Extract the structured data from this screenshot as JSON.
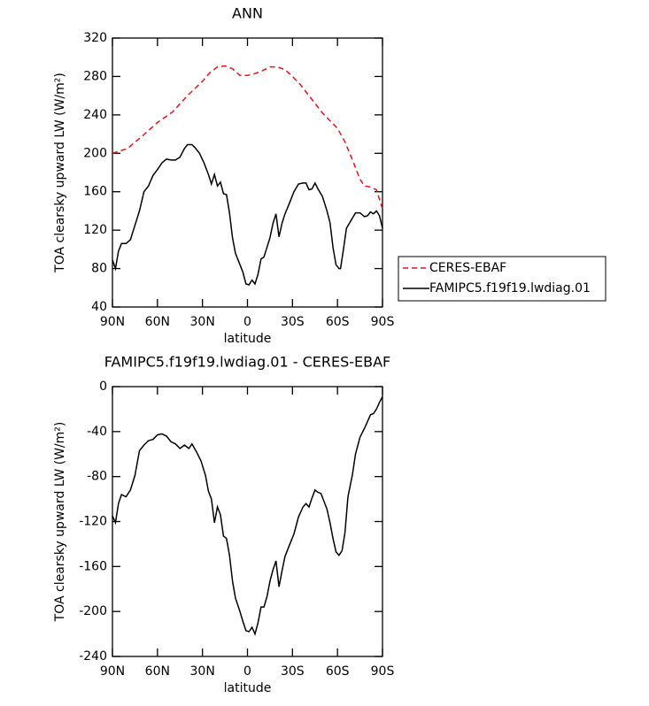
{
  "chart_data": [
    {
      "type": "line",
      "title": "ANN",
      "xlabel": "latitude",
      "ylabel": "TOA clearsky upward LW (W/m²)",
      "xlim": [
        90,
        -90
      ],
      "xticks": [
        {
          "value": 90,
          "label": "90N"
        },
        {
          "value": 60,
          "label": "60N"
        },
        {
          "value": 30,
          "label": "30N"
        },
        0,
        {
          "value": -30,
          "label": "30S"
        },
        {
          "value": -60,
          "label": "60S"
        },
        {
          "value": -90,
          "label": "90S"
        }
      ],
      "ylim": [
        40,
        320
      ],
      "yticks": [
        40,
        80,
        120,
        160,
        200,
        240,
        280,
        320
      ],
      "legend": "right",
      "series": [
        {
          "name": "CERES-EBAF",
          "color": "#e8121a",
          "dash": "dashed",
          "x": [
            90,
            80,
            70,
            60,
            50,
            40,
            30,
            25,
            20,
            15,
            10,
            5,
            0,
            -5,
            -10,
            -15,
            -20,
            -25,
            -30,
            -35,
            -40,
            -45,
            -50,
            -55,
            -60,
            -65,
            -70,
            -75,
            -78,
            -82,
            -86,
            -90
          ],
          "values": [
            200,
            205,
            218,
            232,
            243,
            260,
            275,
            284,
            290,
            291,
            288,
            281,
            281,
            283,
            286,
            290,
            290,
            287,
            280,
            272,
            262,
            252,
            242,
            234,
            226,
            212,
            193,
            173,
            166,
            165,
            162,
            142
          ]
        },
        {
          "name": "FAMIPC5.f19f19.lwdiag.01",
          "color": "#000000",
          "dash": "solid",
          "x": [
            90,
            88,
            86,
            84,
            81,
            78,
            75,
            72,
            69,
            66,
            63,
            60,
            57,
            54,
            51,
            48,
            45,
            42,
            40,
            37,
            35,
            32,
            29,
            26,
            24,
            22,
            20,
            18,
            16,
            14,
            12,
            10,
            8,
            5,
            3,
            1,
            -1,
            -3,
            -5,
            -7,
            -9,
            -11,
            -13,
            -15,
            -17,
            -19,
            -21,
            -23,
            -25,
            -28,
            -31,
            -34,
            -37,
            -39,
            -41,
            -43,
            -45,
            -47,
            -50,
            -53,
            -55,
            -57,
            -59,
            -61,
            -62,
            -64,
            -66,
            -69,
            -72,
            -75,
            -78,
            -80,
            -82,
            -84,
            -86,
            -88,
            -90
          ],
          "values": [
            89,
            80,
            98,
            106,
            106,
            110,
            125,
            140,
            160,
            166,
            177,
            183,
            190,
            194,
            193,
            193,
            196,
            205,
            209,
            209,
            206,
            200,
            190,
            178,
            168,
            178,
            166,
            170,
            158,
            157,
            138,
            112,
            96,
            84,
            76,
            64,
            63,
            68,
            64,
            74,
            90,
            92,
            102,
            112,
            127,
            137,
            113,
            127,
            137,
            148,
            160,
            168,
            169,
            169,
            162,
            163,
            169,
            163,
            155,
            140,
            128,
            102,
            84,
            80,
            80,
            100,
            122,
            130,
            138,
            138,
            134,
            135,
            139,
            137,
            140,
            135,
            122
          ]
        }
      ]
    },
    {
      "type": "line",
      "title": "FAMIPC5.f19f19.lwdiag.01 - CERES-EBAF",
      "xlabel": "latitude",
      "ylabel": "TOA clearsky upward LW (W/m²)",
      "xlim": [
        90,
        -90
      ],
      "xticks": [
        {
          "value": 90,
          "label": "90N"
        },
        {
          "value": 60,
          "label": "60N"
        },
        {
          "value": 30,
          "label": "30N"
        },
        0,
        {
          "value": -30,
          "label": "30S"
        },
        {
          "value": -60,
          "label": "60S"
        },
        {
          "value": -90,
          "label": "90S"
        }
      ],
      "ylim": [
        -240,
        0
      ],
      "yticks": [
        -240,
        -200,
        -160,
        -120,
        -80,
        -40,
        0
      ],
      "series": [
        {
          "color": "#000000",
          "dash": "solid",
          "x": [
            90,
            88,
            86,
            84,
            81,
            78,
            75,
            72,
            69,
            66,
            63,
            60,
            57,
            54,
            51,
            48,
            45,
            42,
            39,
            37,
            34,
            31,
            28,
            26,
            24,
            22,
            20,
            18,
            16,
            14,
            12,
            10,
            8,
            5,
            3,
            1,
            -1,
            -3,
            -5,
            -7,
            -9,
            -11,
            -13,
            -15,
            -17,
            -19,
            -21,
            -23,
            -25,
            -28,
            -31,
            -34,
            -37,
            -39,
            -41,
            -43,
            -45,
            -47,
            -49,
            -51,
            -53,
            -55,
            -57,
            -59,
            -61,
            -63,
            -65,
            -67,
            -70,
            -72,
            -75,
            -78,
            -80,
            -82,
            -84,
            -86,
            -88,
            -90
          ],
          "values": [
            -115,
            -121,
            -104,
            -96,
            -98,
            -92,
            -79,
            -57,
            -52,
            -48,
            -47,
            -43,
            -42,
            -44,
            -49,
            -51,
            -55,
            -52,
            -55,
            -51,
            -58,
            -66,
            -79,
            -93,
            -100,
            -121,
            -107,
            -114,
            -133,
            -135,
            -150,
            -173,
            -188,
            -200,
            -209,
            -217,
            -218,
            -214,
            -220,
            -210,
            -196,
            -196,
            -187,
            -173,
            -163,
            -155,
            -178,
            -164,
            -151,
            -141,
            -131,
            -116,
            -107,
            -104,
            -107,
            -99,
            -92,
            -94,
            -95,
            -102,
            -109,
            -121,
            -135,
            -147,
            -150,
            -146,
            -130,
            -98,
            -78,
            -60,
            -45,
            -37,
            -31,
            -25,
            -24,
            -20,
            -14,
            -9
          ]
        }
      ]
    }
  ]
}
